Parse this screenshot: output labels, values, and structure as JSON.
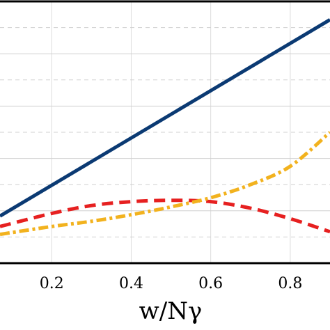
{
  "chart_data": {
    "type": "line",
    "xlabel": "w/Nγ",
    "xlim": [
      0.07,
      0.9
    ],
    "ylim": [
      0,
      1
    ],
    "x_ticks": [
      0.2,
      0.4,
      0.6,
      0.8
    ],
    "x_tick_labels": [
      "0.2",
      "0.4",
      "0.6",
      "0.8"
    ],
    "grid": true,
    "series": [
      {
        "color": "#0b3a73",
        "style": "solid",
        "x": [
          0.07,
          0.9
        ],
        "y": [
          0.18,
          0.93
        ]
      },
      {
        "color": "#e62020",
        "style": "dashed",
        "x": [
          0.07,
          0.2,
          0.3,
          0.4,
          0.5,
          0.6,
          0.7,
          0.8,
          0.9
        ],
        "y": [
          0.14,
          0.19,
          0.22,
          0.235,
          0.24,
          0.235,
          0.21,
          0.17,
          0.12
        ]
      },
      {
        "color": "#f2b21e",
        "style": "dashdot",
        "x": [
          0.07,
          0.2,
          0.3,
          0.4,
          0.5,
          0.6,
          0.7,
          0.8,
          0.9
        ],
        "y": [
          0.11,
          0.14,
          0.16,
          0.185,
          0.215,
          0.25,
          0.3,
          0.37,
          0.5
        ]
      }
    ]
  }
}
